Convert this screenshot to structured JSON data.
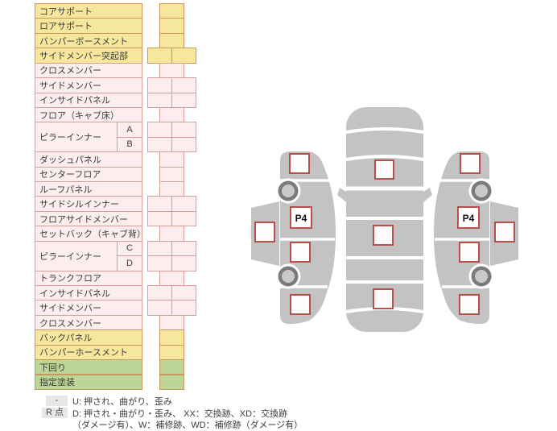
{
  "parts_table": {
    "rows": [
      {
        "label": "コアサポート",
        "type": "yellow",
        "cells": 1
      },
      {
        "label": "ロアサポート",
        "type": "yellow",
        "cells": 1
      },
      {
        "label": "バンパーボースメント",
        "type": "yellow",
        "cells": 1
      },
      {
        "label": "サイドメンバー突起部",
        "type": "yellow",
        "cells": 2
      },
      {
        "label": "クロスメンバー",
        "type": "pink",
        "cells": 1
      },
      {
        "label": "サイドメンバー",
        "type": "pink",
        "cells": 2
      },
      {
        "label": "インサイドパネル",
        "type": "pink",
        "cells": 2
      },
      {
        "label": "フロア（キャブ床）",
        "type": "pink",
        "cells": 1
      },
      {
        "label": "ピラーインナー",
        "type": "pink",
        "cells": 2,
        "subs": [
          "A",
          "B"
        ]
      },
      {
        "label": "ダッシュパネル",
        "type": "pink",
        "cells": 1
      },
      {
        "label": "センターフロア",
        "type": "pink",
        "cells": 1
      },
      {
        "label": "ルーフパネル",
        "type": "pink",
        "cells": 1
      },
      {
        "label": "サイドシルインナー",
        "type": "pink",
        "cells": 2
      },
      {
        "label": "フロアサイドメンバー",
        "type": "pink",
        "cells": 2
      },
      {
        "label": "セットバック（キャブ背）",
        "type": "pink",
        "cells": 1
      },
      {
        "label": "ピラーインナー",
        "type": "pink",
        "cells": 2,
        "subs": [
          "C",
          "D"
        ]
      },
      {
        "label": "トランクフロア",
        "type": "pink",
        "cells": 1
      },
      {
        "label": "インサイドパネル",
        "type": "pink",
        "cells": 2
      },
      {
        "label": "サイドメンバー",
        "type": "pink",
        "cells": 2
      },
      {
        "label": "クロスメンバー",
        "type": "pink",
        "cells": 1
      },
      {
        "label": "バックパネル",
        "type": "yellow",
        "cells": 1
      },
      {
        "label": "バンパーホースメント",
        "type": "yellow",
        "cells": 1
      },
      {
        "label": "下回り",
        "type": "green",
        "cells": 1
      },
      {
        "label": "指定塗装",
        "type": "green",
        "cells": 1
      }
    ]
  },
  "legend": {
    "rows": [
      {
        "badge": "-",
        "text_lines": [
          "U: 押され、曲がり、歪み"
        ]
      },
      {
        "badge": "R 点",
        "text_lines": [
          "D: 押され・曲がり・歪み、 XX：交換跡、XD：交換跡",
          "（ダメージ有）、W：補修跡、WD：補修跡（ダメージ有）"
        ]
      }
    ]
  },
  "diagram": {
    "left_p4": "P4",
    "right_p4": "P4"
  },
  "colors": {
    "yellow_fill": "#F7E79D",
    "yellow_border": "#CF955C",
    "pink_fill": "#FCEDEF",
    "pink_border": "#DA9E9A",
    "green_fill": "#BDD596",
    "green_border": "#C59A5E",
    "car_gray": "#C3C3C3",
    "wheel_ring": "#7B7B7B",
    "wheel_hub": "#C9C9C9",
    "point_border": "#B4403E",
    "point_fill": "#FFFDFD",
    "legend_badge_bg": "#E7E7E7"
  }
}
